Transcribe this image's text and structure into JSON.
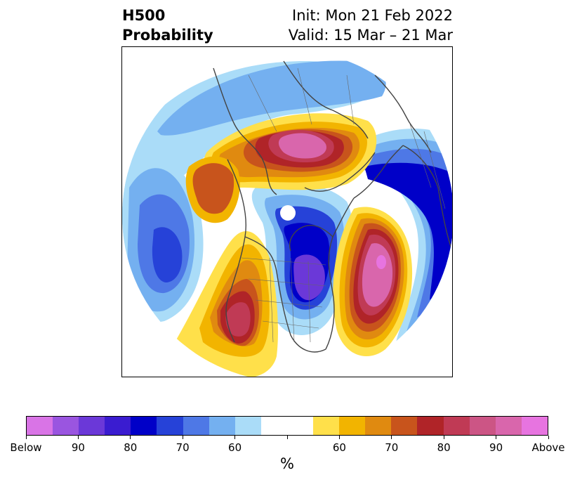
{
  "title": {
    "left_line1": "H500",
    "left_line2": "Probability",
    "right_line1": "Init: Mon 21 Feb 2022",
    "right_line2": "Valid: 15 Mar – 21 Mar"
  },
  "colorbar": {
    "colors": [
      "#d974e6",
      "#9a55e0",
      "#6b38d8",
      "#3a1cd0",
      "#0000c8",
      "#2642d8",
      "#4e78e6",
      "#74b0f0",
      "#aadcf8",
      "#ffffff",
      "#ffffff",
      "#ffe04a",
      "#f2b400",
      "#e08a10",
      "#c8541c",
      "#b02428",
      "#c03a55",
      "#cc5585",
      "#d966ac",
      "#e774e0"
    ],
    "tick_labels": [
      "Below",
      "90",
      "80",
      "70",
      "60",
      "",
      "60",
      "70",
      "80",
      "90",
      "Above"
    ],
    "unit": "%"
  },
  "map": {
    "colors": {
      "blue_light": "#aadcf8",
      "blue_mid": "#74b0f0",
      "blue_med": "#4e78e6",
      "blue_strong": "#2642d8",
      "blue_deep": "#0000c8",
      "purple": "#6b38d8",
      "yellow": "#ffe04a",
      "gold": "#f2b400",
      "orange": "#e08a10",
      "rust": "#c8541c",
      "red": "#b02428",
      "crimson": "#c03a55",
      "pink": "#d966ac",
      "magenta": "#e774e0"
    }
  }
}
